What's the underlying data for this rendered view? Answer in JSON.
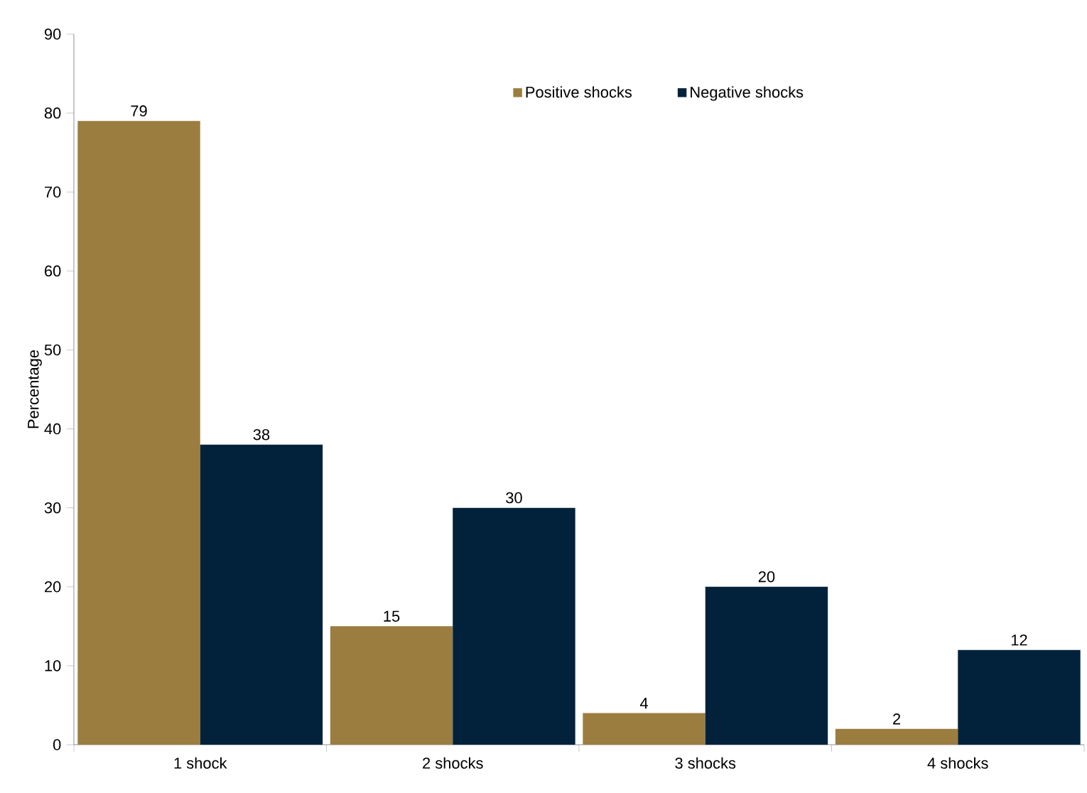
{
  "chart_data": {
    "type": "bar",
    "ylabel": "Percentage",
    "categories": [
      "1 shock",
      "2 shocks",
      "3 shocks",
      "4 shocks"
    ],
    "series": [
      {
        "name": "Positive shocks",
        "color": "#9c7d40",
        "values": [
          79,
          15,
          4,
          2
        ]
      },
      {
        "name": "Negative shocks",
        "color": "#02223b",
        "values": [
          38,
          30,
          20,
          12
        ]
      }
    ],
    "ylim": [
      0,
      90
    ],
    "yticks": [
      0,
      10,
      20,
      30,
      40,
      50,
      60,
      70,
      80,
      90
    ],
    "data_labels": true,
    "legend": "top",
    "grid": false
  }
}
